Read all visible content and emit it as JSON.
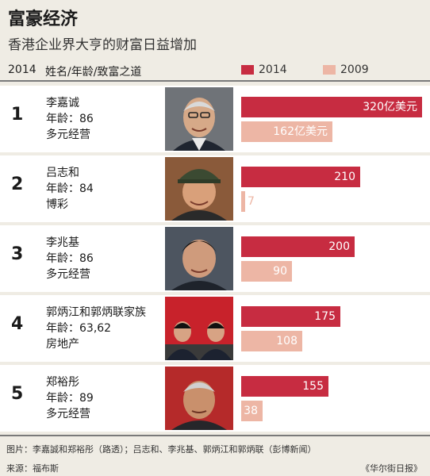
{
  "header": {
    "title": "富豪经济",
    "subtitle": "香港企业界大亨的财富日益增加",
    "col_year": "2014",
    "col_name": "姓名/年龄/致富之道"
  },
  "chart_data": {
    "type": "bar",
    "orientation": "horizontal",
    "unit": "亿美元",
    "xlim": [
      0,
      320
    ],
    "legend_position": "top-right",
    "series": [
      {
        "name": "2014",
        "color": "#c72c41",
        "values": [
          320,
          210,
          200,
          175,
          155
        ],
        "labels": [
          "320亿美元",
          "210",
          "200",
          "175",
          "155"
        ]
      },
      {
        "name": "2009",
        "color": "#edb6a5",
        "values": [
          162,
          7,
          90,
          108,
          38
        ],
        "labels": [
          "162亿美元",
          "7",
          "90",
          "108",
          "38"
        ]
      }
    ],
    "rows": [
      {
        "rank": "1",
        "name": "李嘉诚",
        "age": "年龄：86",
        "source": "多元经营"
      },
      {
        "rank": "2",
        "name": "吕志和",
        "age": "年龄：84",
        "source": "博彩"
      },
      {
        "rank": "3",
        "name": "李兆基",
        "age": "年龄：86",
        "source": "多元经营"
      },
      {
        "rank": "4",
        "name": "郭炳江和郭炳联家族",
        "age": "年龄：63,62",
        "source": "房地产"
      },
      {
        "rank": "5",
        "name": "郑裕彤",
        "age": "年龄：89",
        "source": "多元经营"
      }
    ]
  },
  "footer": {
    "photo_credit": "图片：李嘉誠和郑裕彤（路透）；吕志和、李兆基、郭炳江和郭炳联（彭博新闻）",
    "source": "来源：福布斯",
    "publisher": "《华尔街日报》"
  }
}
